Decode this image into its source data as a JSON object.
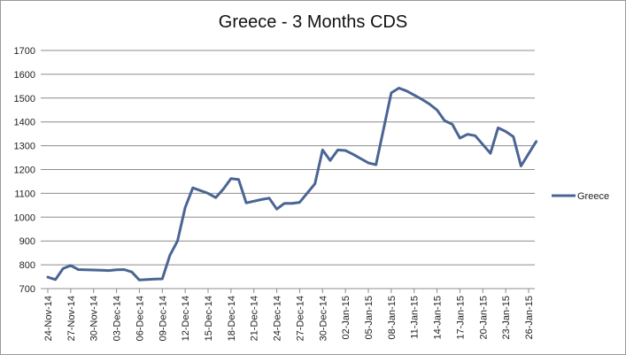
{
  "chart_data": {
    "type": "line",
    "title": "Greece - 3 Months CDS",
    "xlabel": "",
    "ylabel": "",
    "ylim": [
      700,
      1700
    ],
    "y_ticks": [
      700,
      800,
      900,
      1000,
      1100,
      1200,
      1300,
      1400,
      1500,
      1600,
      1700
    ],
    "x_tick_labels": [
      "24-Nov-14",
      "27-Nov-14",
      "30-Nov-14",
      "03-Dec-14",
      "06-Dec-14",
      "09-Dec-14",
      "12-Dec-14",
      "15-Dec-14",
      "18-Dec-14",
      "21-Dec-14",
      "24-Dec-14",
      "27-Dec-14",
      "30-Dec-14",
      "02-Jan-15",
      "05-Jan-15",
      "08-Jan-15",
      "11-Jan-15",
      "14-Jan-15",
      "17-Jan-15",
      "20-Jan-15",
      "23-Jan-15",
      "26-Jan-15"
    ],
    "grid": "horizontal",
    "legend_position": "right",
    "series": [
      {
        "name": "Greece",
        "color": "#4a6594",
        "points": [
          [
            "2014-11-24",
            748
          ],
          [
            "2014-11-25",
            738
          ],
          [
            "2014-11-26",
            784
          ],
          [
            "2014-11-27",
            797
          ],
          [
            "2014-11-28",
            780
          ],
          [
            "2014-12-01",
            777
          ],
          [
            "2014-12-02",
            776
          ],
          [
            "2014-12-03",
            779
          ],
          [
            "2014-12-04",
            780
          ],
          [
            "2014-12-05",
            770
          ],
          [
            "2014-12-06",
            736
          ],
          [
            "2014-12-08",
            740
          ],
          [
            "2014-12-09",
            741
          ],
          [
            "2014-12-10",
            840
          ],
          [
            "2014-12-11",
            900
          ],
          [
            "2014-12-12",
            1040
          ],
          [
            "2014-12-13",
            1123
          ],
          [
            "2014-12-15",
            1100
          ],
          [
            "2014-12-16",
            1082
          ],
          [
            "2014-12-17",
            1118
          ],
          [
            "2014-12-18",
            1162
          ],
          [
            "2014-12-19",
            1158
          ],
          [
            "2014-12-20",
            1060
          ],
          [
            "2014-12-22",
            1074
          ],
          [
            "2014-12-23",
            1080
          ],
          [
            "2014-12-24",
            1034
          ],
          [
            "2014-12-25",
            1058
          ],
          [
            "2014-12-26",
            1058
          ],
          [
            "2014-12-27",
            1062
          ],
          [
            "2014-12-29",
            1140
          ],
          [
            "2014-12-30",
            1282
          ],
          [
            "2014-12-31",
            1238
          ],
          [
            "2015-01-01",
            1282
          ],
          [
            "2015-01-02",
            1280
          ],
          [
            "2015-01-03",
            1264
          ],
          [
            "2015-01-05",
            1228
          ],
          [
            "2015-01-06",
            1220
          ],
          [
            "2015-01-07",
            1370
          ],
          [
            "2015-01-08",
            1522
          ],
          [
            "2015-01-09",
            1542
          ],
          [
            "2015-01-10",
            1530
          ],
          [
            "2015-01-12",
            1495
          ],
          [
            "2015-01-13",
            1475
          ],
          [
            "2015-01-14",
            1450
          ],
          [
            "2015-01-15",
            1405
          ],
          [
            "2015-01-16",
            1390
          ],
          [
            "2015-01-17",
            1332
          ],
          [
            "2015-01-18",
            1348
          ],
          [
            "2015-01-19",
            1342
          ],
          [
            "2015-01-21",
            1268
          ],
          [
            "2015-01-22",
            1375
          ],
          [
            "2015-01-23",
            1360
          ],
          [
            "2015-01-24",
            1338
          ],
          [
            "2015-01-25",
            1215
          ],
          [
            "2015-01-27",
            1318
          ]
        ]
      }
    ]
  }
}
